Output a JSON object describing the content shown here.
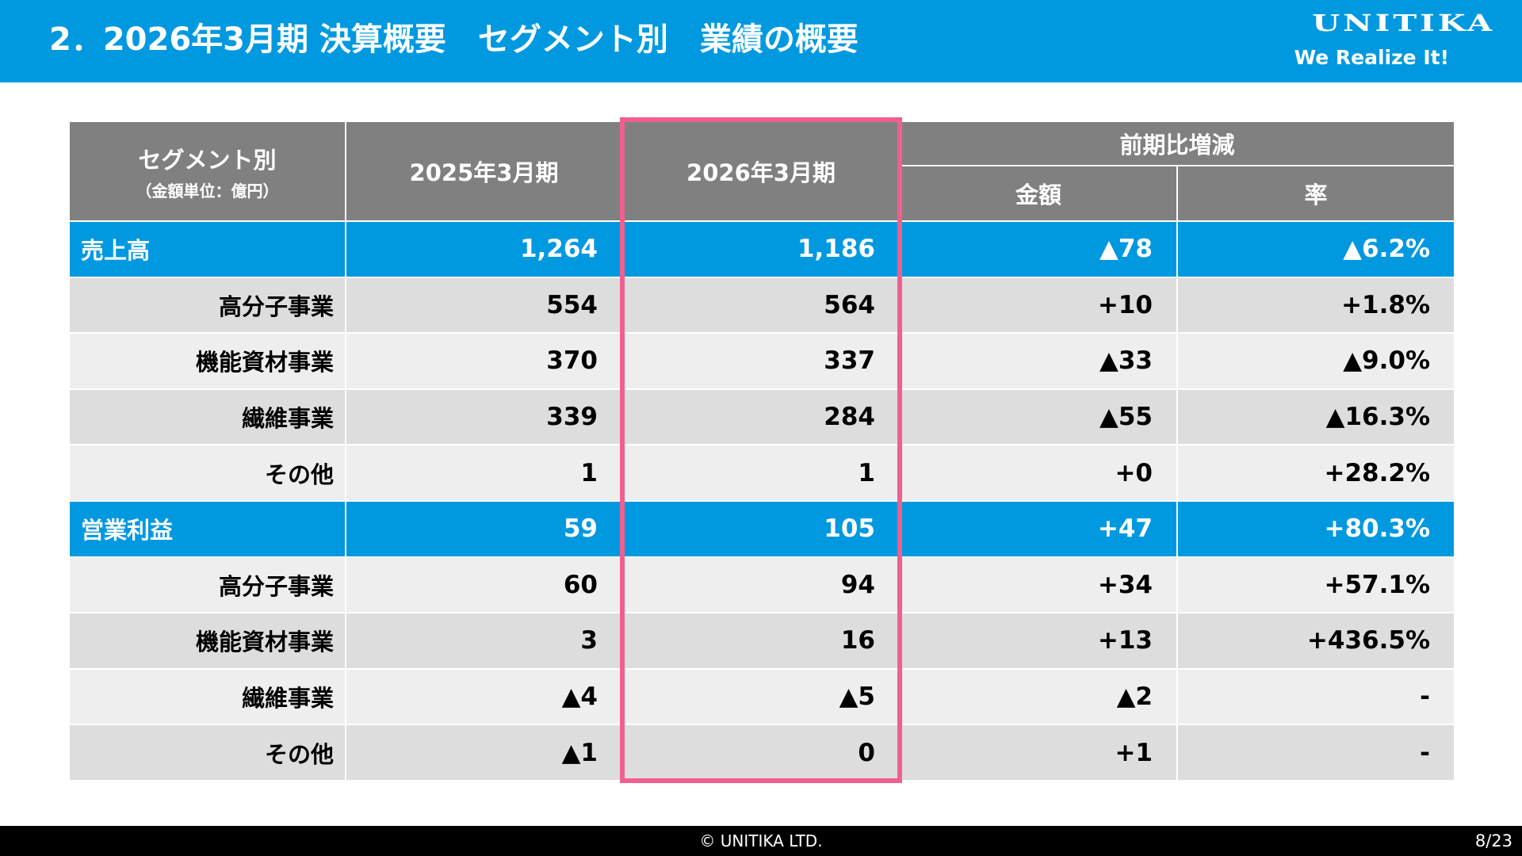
{
  "header": {
    "title": "2．2026年3月期 決算概要　セグメント別　業績の概要",
    "logo_name": "UNITIKA",
    "logo_tagline": "We Realize It!"
  },
  "table": {
    "col_segment": "セグメント別",
    "col_segment_unit": "（金額単位：億円）",
    "col_prev": "2025年3月期",
    "col_curr": "2026年3月期",
    "col_change_group": "前期比増減",
    "col_change_amount": "金額",
    "col_change_rate": "率",
    "rows": [
      {
        "label": "売上高",
        "prev": "1,264",
        "curr": "1,186",
        "amount": "▲78",
        "rate": "▲6.2%"
      },
      {
        "label": "高分子事業",
        "prev": "554",
        "curr": "564",
        "amount": "+10",
        "rate": "+1.8%"
      },
      {
        "label": "機能資材事業",
        "prev": "370",
        "curr": "337",
        "amount": "▲33",
        "rate": "▲9.0%"
      },
      {
        "label": "繊維事業",
        "prev": "339",
        "curr": "284",
        "amount": "▲55",
        "rate": "▲16.3%"
      },
      {
        "label": "その他",
        "prev": "1",
        "curr": "1",
        "amount": "+0",
        "rate": "+28.2%"
      },
      {
        "label": "営業利益",
        "prev": "59",
        "curr": "105",
        "amount": "+47",
        "rate": "+80.3%"
      },
      {
        "label": "高分子事業",
        "prev": "60",
        "curr": "94",
        "amount": "+34",
        "rate": "+57.1%"
      },
      {
        "label": "機能資材事業",
        "prev": "3",
        "curr": "16",
        "amount": "+13",
        "rate": "+436.5%"
      },
      {
        "label": "繊維事業",
        "prev": "▲4",
        "curr": "▲5",
        "amount": "▲2",
        "rate": "-"
      },
      {
        "label": "その他",
        "prev": "▲1",
        "curr": "0",
        "amount": "+1",
        "rate": "-"
      }
    ]
  },
  "footer": {
    "copyright": "© UNITIKA LTD.",
    "page": "8/23"
  },
  "colors": {
    "header_blue": "#0099e0",
    "table_header_gray": "#808080",
    "highlight_pink": "#f0608f"
  }
}
